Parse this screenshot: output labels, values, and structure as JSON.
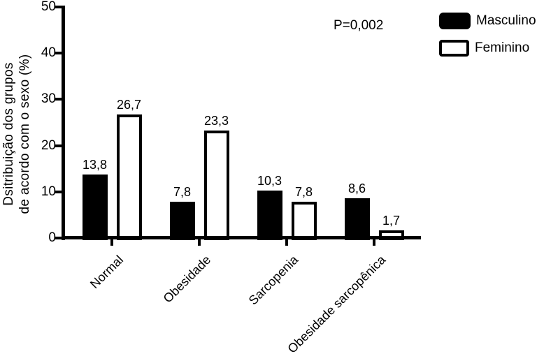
{
  "chart_data": {
    "type": "bar",
    "title": "",
    "categories": [
      "Normal",
      "Obesidade",
      "Sarcopenia",
      "Obesidade sarcopênica"
    ],
    "series": [
      {
        "name": "Masculino",
        "style": "filled",
        "color": "#000000",
        "values": [
          13.8,
          7.8,
          10.3,
          8.6
        ],
        "value_labels": [
          "13,8",
          "7,8",
          "10,3",
          "8,6"
        ]
      },
      {
        "name": "Feminino",
        "style": "outlined",
        "color": "#ffffff",
        "values": [
          26.7,
          23.3,
          7.8,
          1.7
        ],
        "value_labels": [
          "26,7",
          "23,3",
          "7,8",
          "1,7"
        ]
      }
    ],
    "ylabel_line1": "Dsitribuição dos grupos",
    "ylabel_line2": "de acordo com o sexo (%)",
    "xlabel": "",
    "yticks": [
      0,
      10,
      20,
      30,
      40,
      50
    ],
    "ylim": [
      0,
      50
    ],
    "annotation": "P=0,002",
    "legend_position": "top-right",
    "grid": false,
    "axis_color": "#000000",
    "background_color": "#ffffff"
  }
}
